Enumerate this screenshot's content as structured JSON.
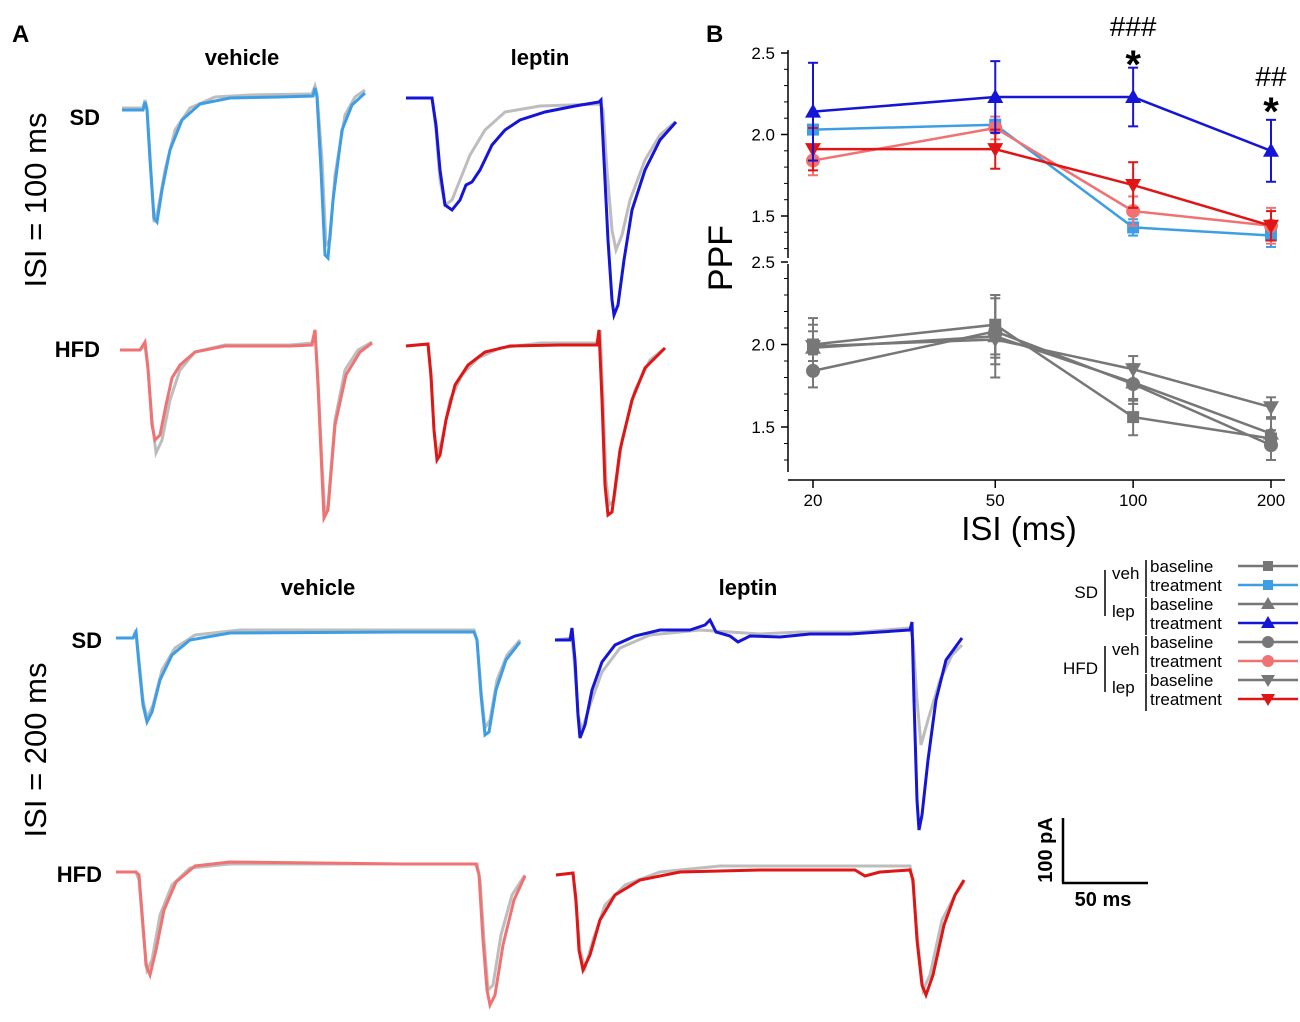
{
  "panel_a": {
    "label": "A",
    "col_vehicle": "vehicle",
    "col_leptin": "leptin",
    "row_sd": "SD",
    "row_hfd": "HFD",
    "isi100_label": "ISI = 100 ms",
    "isi200_label": "ISI = 200 ms"
  },
  "scale_bar": {
    "y_label": "100 pA",
    "x_label": "50 ms"
  },
  "colors": {
    "gray": "#777777",
    "light_gray": "#bdbdbd",
    "sd_veh_treatment": "#3d9ee6",
    "sd_lep_treatment": "#1515d8",
    "hfd_veh_treatment": "#f07272",
    "hfd_lep_treatment": "#e01515"
  },
  "legend": {
    "groups": [
      {
        "name": "SD",
        "subgroups": [
          {
            "name": "veh",
            "entries": [
              {
                "label": "baseline",
                "series": "sd_veh_baseline"
              },
              {
                "label": "treatment",
                "series": "sd_veh_treatment"
              }
            ]
          },
          {
            "name": "lep",
            "entries": [
              {
                "label": "baseline",
                "series": "sd_lep_baseline"
              },
              {
                "label": "treatment",
                "series": "sd_lep_treatment"
              }
            ]
          }
        ]
      },
      {
        "name": "HFD",
        "subgroups": [
          {
            "name": "veh",
            "entries": [
              {
                "label": "baseline",
                "series": "hfd_veh_baseline"
              },
              {
                "label": "treatment",
                "series": "hfd_veh_treatment"
              }
            ]
          },
          {
            "name": "lep",
            "entries": [
              {
                "label": "baseline",
                "series": "hfd_lep_baseline"
              },
              {
                "label": "treatment",
                "series": "hfd_lep_treatment"
              }
            ]
          }
        ]
      }
    ]
  },
  "chart_data": {
    "type": "line",
    "panel_label": "B",
    "ylabel": "PPF",
    "xlabel": "ISI (ms)",
    "x": [
      20,
      50,
      100,
      200
    ],
    "x_tick_labels": [
      "20",
      "50",
      "100",
      "200"
    ],
    "upper_axis": {
      "ylim": [
        1.3,
        2.5
      ],
      "ticks": [
        "1.5",
        "2.0",
        "2.5"
      ]
    },
    "lower_axis": {
      "ylim": [
        1.25,
        2.5
      ],
      "ticks": [
        "1.5",
        "2.0",
        "2.5"
      ]
    },
    "annotations": [
      {
        "x": 100,
        "hash": "###",
        "star": "*"
      },
      {
        "x": 200,
        "hash": "##",
        "star": "*"
      }
    ],
    "series": [
      {
        "id": "sd_veh_treatment",
        "name": "SD veh treatment",
        "axis": "upper",
        "color": "#3d9ee6",
        "marker": "square",
        "values": [
          2.03,
          2.06,
          1.43,
          1.38
        ],
        "err": [
          0.03,
          0.03,
          0.05,
          0.07
        ]
      },
      {
        "id": "hfd_veh_treatment",
        "name": "HFD veh treatment",
        "axis": "upper",
        "color": "#f07272",
        "marker": "circle",
        "values": [
          1.84,
          2.04,
          1.53,
          1.44
        ],
        "err": [
          0.09,
          0.07,
          0.09,
          0.11
        ]
      },
      {
        "id": "hfd_lep_treatment",
        "name": "HFD lep treatment",
        "axis": "upper",
        "color": "#e01515",
        "marker": "triangle-down",
        "values": [
          1.91,
          1.91,
          1.69,
          1.44
        ],
        "err": [
          0.13,
          0.12,
          0.14,
          0.09
        ]
      },
      {
        "id": "sd_lep_treatment",
        "name": "SD lep treatment",
        "axis": "upper",
        "color": "#1515d8",
        "marker": "triangle-up",
        "values": [
          2.14,
          2.23,
          2.23,
          1.9
        ],
        "err": [
          0.3,
          0.22,
          0.18,
          0.19
        ]
      },
      {
        "id": "sd_veh_baseline",
        "name": "SD veh baseline",
        "axis": "lower",
        "color": "#777777",
        "marker": "square",
        "values": [
          2.0,
          2.12,
          1.56,
          1.43
        ],
        "err": [
          0.16,
          0.18,
          0.11,
          0.05
        ]
      },
      {
        "id": "sd_lep_baseline",
        "name": "SD lep baseline",
        "axis": "lower",
        "color": "#777777",
        "marker": "triangle-up",
        "values": [
          1.98,
          2.05,
          1.77,
          1.46
        ],
        "err": [
          0.14,
          0.25,
          0.11,
          0.09
        ]
      },
      {
        "id": "hfd_veh_baseline",
        "name": "HFD veh baseline",
        "axis": "lower",
        "color": "#777777",
        "marker": "circle",
        "values": [
          1.84,
          2.08,
          1.76,
          1.39
        ],
        "err": [
          0.1,
          0.2,
          0.12,
          0.09
        ]
      },
      {
        "id": "hfd_lep_baseline",
        "name": "HFD lep baseline",
        "axis": "lower",
        "color": "#777777",
        "marker": "triangle-down",
        "values": [
          1.99,
          2.03,
          1.85,
          1.62
        ],
        "err": [
          0.09,
          0.11,
          0.08,
          0.06
        ]
      }
    ]
  }
}
